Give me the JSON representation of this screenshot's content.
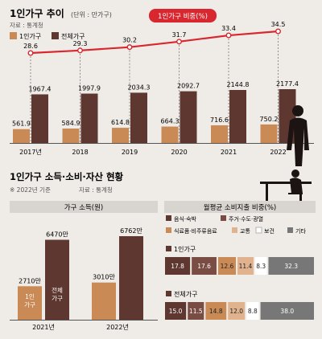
{
  "colors": {
    "background": "#efece7",
    "dark_bar": "#5e3830",
    "light_bar": "#c98a55",
    "line": "#d8272f",
    "panel": "#d8d4cf",
    "seg": [
      "#5e3830",
      "#7a4d44",
      "#c98a55",
      "#e0b28e",
      "#ffffff",
      "#777777"
    ]
  },
  "chart_data": [
    {
      "type": "bar",
      "title": "1인가구 추이",
      "unit_note": "(단위 : 만가구)",
      "source": "자료 : 통계청",
      "legend": [
        "1인가구",
        "전체가구"
      ],
      "categories": [
        "2017년",
        "2018",
        "2019",
        "2020",
        "2021",
        "2022"
      ],
      "series": [
        {
          "name": "1인가구",
          "values": [
            561.9,
            584.9,
            614.8,
            664.3,
            716.6,
            750.2
          ]
        },
        {
          "name": "전체가구",
          "values": [
            1967.4,
            1997.9,
            2034.3,
            2092.7,
            2144.8,
            2177.4
          ]
        }
      ],
      "line": {
        "type": "line",
        "name": "1인가구 비중(%)",
        "values": [
          28.6,
          29.3,
          30.2,
          31.7,
          33.4,
          34.5
        ]
      }
    },
    {
      "type": "bar",
      "title": "1인가구 소득·소비·자산 현황",
      "note": "※ 2022년 기준",
      "source": "자료 : 통계청",
      "panel_title": "가구 소득(원)",
      "categories": [
        "2021년",
        "2022년"
      ],
      "series": [
        {
          "name": "1인 가구",
          "values": [
            2710,
            3010
          ],
          "labels": [
            "2710만",
            "3010만"
          ]
        },
        {
          "name": "전체 가구",
          "values": [
            6470,
            6762
          ],
          "labels": [
            "6470만",
            "6762만"
          ]
        }
      ]
    },
    {
      "type": "bar",
      "title": "월평균 소비지출 비중(%)",
      "legend": [
        "음식·숙박",
        "주거·수도·광열",
        "식료품·비주류음료",
        "교통",
        "보건",
        "기타"
      ],
      "rows": [
        {
          "name": "1인가구",
          "values": [
            17.8,
            17.6,
            12.6,
            11.4,
            8.3,
            32.3
          ]
        },
        {
          "name": "전체가구",
          "values": [
            15.0,
            11.5,
            14.8,
            12.0,
            8.8,
            38.0
          ]
        }
      ]
    }
  ]
}
